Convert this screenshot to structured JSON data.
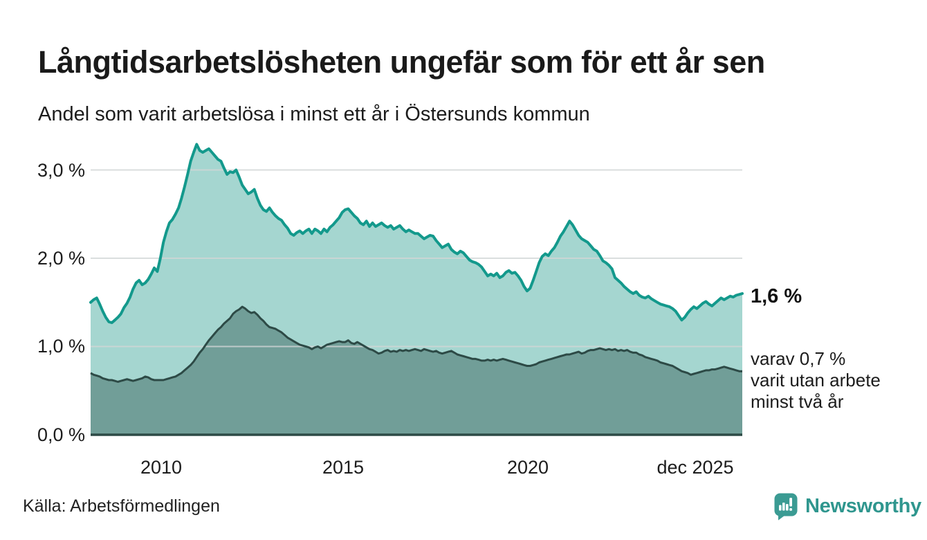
{
  "title": "Långtidsarbetslösheten ungefär som för ett år sen",
  "subtitle": "Andel som varit arbetslösa i minst ett år i Östersunds kommun",
  "source": "Källa: Arbetsförmedlingen",
  "brand": {
    "name": "Newsworthy",
    "icon": "newsworthy-speech-bubble-bars-icon",
    "color": "#2f968e",
    "icon_color": "#3b9b93"
  },
  "annotations": {
    "end_value": "1,6 %",
    "sub_lines": [
      "varav 0,7 %",
      "varit utan arbete",
      "minst två år"
    ]
  },
  "colors": {
    "line_total": "#13998c",
    "fill_total": "#a5d6d0",
    "line_two_years": "#2d4a46",
    "fill_two_years": "#719e98",
    "gridline": "#d2d6d6",
    "text": "#1a1a1a"
  },
  "chart_data": {
    "type": "area",
    "title": "Långtidsarbetslösheten ungefär som för ett år sen",
    "subtitle": "Andel som varit arbetslösa i minst ett år i Östersunds kommun",
    "unit": "%",
    "x_start": "2008-01",
    "x_end": "2025-12",
    "interval": "monthly",
    "ylim": [
      0,
      3.45
    ],
    "grid": "horizontal",
    "legend_position": "right-annotations",
    "x_ticks": [
      {
        "label": "2010",
        "x": 2010.0,
        "align": "center"
      },
      {
        "label": "2015",
        "x": 2015.0,
        "align": "center"
      },
      {
        "label": "2020",
        "x": 2020.0,
        "align": "center"
      },
      {
        "label": "dec 2025",
        "x": 2025.92,
        "align": "end"
      }
    ],
    "y_ticks": [
      {
        "label": "3,0 %",
        "value": 3
      },
      {
        "label": "2,0 %",
        "value": 2
      },
      {
        "label": "1,0 %",
        "value": 1
      },
      {
        "label": "0,0 %",
        "value": 0
      }
    ],
    "series": [
      {
        "name": "Andel arbetslösa minst ett år",
        "end_label": "1,6 %",
        "color": "#13998c",
        "fill": "#a5d6d0",
        "values": [
          1.5,
          1.53,
          1.55,
          1.48,
          1.4,
          1.33,
          1.28,
          1.27,
          1.3,
          1.33,
          1.37,
          1.44,
          1.49,
          1.56,
          1.65,
          1.72,
          1.75,
          1.7,
          1.72,
          1.76,
          1.82,
          1.89,
          1.85,
          2.0,
          2.18,
          2.3,
          2.4,
          2.44,
          2.5,
          2.57,
          2.68,
          2.81,
          2.95,
          3.1,
          3.2,
          3.29,
          3.22,
          3.2,
          3.22,
          3.24,
          3.2,
          3.16,
          3.12,
          3.1,
          3.02,
          2.95,
          2.98,
          2.97,
          3.0,
          2.92,
          2.83,
          2.78,
          2.73,
          2.75,
          2.78,
          2.68,
          2.6,
          2.55,
          2.53,
          2.57,
          2.52,
          2.48,
          2.45,
          2.43,
          2.38,
          2.34,
          2.28,
          2.26,
          2.29,
          2.31,
          2.28,
          2.31,
          2.33,
          2.28,
          2.33,
          2.31,
          2.28,
          2.33,
          2.3,
          2.35,
          2.38,
          2.42,
          2.46,
          2.52,
          2.55,
          2.56,
          2.52,
          2.48,
          2.45,
          2.4,
          2.38,
          2.42,
          2.36,
          2.4,
          2.36,
          2.38,
          2.4,
          2.37,
          2.35,
          2.37,
          2.33,
          2.35,
          2.37,
          2.33,
          2.3,
          2.32,
          2.3,
          2.28,
          2.28,
          2.25,
          2.22,
          2.24,
          2.26,
          2.25,
          2.2,
          2.16,
          2.12,
          2.14,
          2.16,
          2.1,
          2.07,
          2.05,
          2.08,
          2.06,
          2.02,
          1.98,
          1.96,
          1.95,
          1.93,
          1.9,
          1.85,
          1.8,
          1.82,
          1.8,
          1.83,
          1.78,
          1.8,
          1.84,
          1.86,
          1.83,
          1.84,
          1.8,
          1.75,
          1.68,
          1.63,
          1.66,
          1.75,
          1.85,
          1.95,
          2.02,
          2.05,
          2.03,
          2.08,
          2.12,
          2.18,
          2.25,
          2.3,
          2.36,
          2.42,
          2.38,
          2.32,
          2.26,
          2.22,
          2.2,
          2.18,
          2.14,
          2.1,
          2.08,
          2.03,
          1.97,
          1.95,
          1.92,
          1.88,
          1.78,
          1.75,
          1.72,
          1.68,
          1.65,
          1.62,
          1.6,
          1.62,
          1.58,
          1.56,
          1.55,
          1.57,
          1.54,
          1.52,
          1.5,
          1.48,
          1.47,
          1.46,
          1.45,
          1.43,
          1.4,
          1.35,
          1.3,
          1.33,
          1.38,
          1.42,
          1.45,
          1.43,
          1.46,
          1.49,
          1.51,
          1.48,
          1.46,
          1.49,
          1.52,
          1.55,
          1.53,
          1.55,
          1.57,
          1.56,
          1.58,
          1.59,
          1.6
        ]
      },
      {
        "name": "varav utan arbete minst två år",
        "end_label": "0,7 %",
        "color": "#2d4a46",
        "fill": "#719e98",
        "values": [
          0.7,
          0.68,
          0.67,
          0.66,
          0.64,
          0.63,
          0.62,
          0.62,
          0.61,
          0.6,
          0.61,
          0.62,
          0.63,
          0.62,
          0.61,
          0.62,
          0.63,
          0.64,
          0.66,
          0.65,
          0.63,
          0.62,
          0.62,
          0.62,
          0.62,
          0.63,
          0.64,
          0.65,
          0.66,
          0.68,
          0.7,
          0.73,
          0.76,
          0.79,
          0.83,
          0.88,
          0.93,
          0.97,
          1.02,
          1.07,
          1.11,
          1.15,
          1.19,
          1.22,
          1.26,
          1.29,
          1.32,
          1.37,
          1.4,
          1.42,
          1.45,
          1.43,
          1.4,
          1.38,
          1.39,
          1.36,
          1.32,
          1.29,
          1.25,
          1.22,
          1.21,
          1.2,
          1.18,
          1.16,
          1.13,
          1.1,
          1.08,
          1.06,
          1.04,
          1.02,
          1.01,
          1.0,
          0.99,
          0.97,
          0.99,
          1.0,
          0.98,
          1.0,
          1.02,
          1.03,
          1.04,
          1.05,
          1.06,
          1.05,
          1.05,
          1.07,
          1.04,
          1.03,
          1.05,
          1.03,
          1.01,
          0.99,
          0.97,
          0.96,
          0.94,
          0.92,
          0.93,
          0.95,
          0.96,
          0.94,
          0.95,
          0.94,
          0.96,
          0.95,
          0.96,
          0.95,
          0.96,
          0.97,
          0.96,
          0.95,
          0.97,
          0.96,
          0.95,
          0.94,
          0.95,
          0.93,
          0.92,
          0.93,
          0.94,
          0.95,
          0.93,
          0.91,
          0.9,
          0.89,
          0.88,
          0.87,
          0.86,
          0.86,
          0.85,
          0.84,
          0.84,
          0.85,
          0.84,
          0.85,
          0.84,
          0.85,
          0.86,
          0.85,
          0.84,
          0.83,
          0.82,
          0.81,
          0.8,
          0.79,
          0.78,
          0.78,
          0.79,
          0.8,
          0.82,
          0.83,
          0.84,
          0.85,
          0.86,
          0.87,
          0.88,
          0.89,
          0.9,
          0.91,
          0.91,
          0.92,
          0.93,
          0.94,
          0.92,
          0.93,
          0.95,
          0.96,
          0.96,
          0.97,
          0.98,
          0.97,
          0.96,
          0.97,
          0.96,
          0.97,
          0.95,
          0.96,
          0.95,
          0.96,
          0.94,
          0.93,
          0.93,
          0.91,
          0.9,
          0.88,
          0.87,
          0.86,
          0.85,
          0.84,
          0.82,
          0.81,
          0.8,
          0.79,
          0.78,
          0.76,
          0.74,
          0.72,
          0.71,
          0.7,
          0.68,
          0.69,
          0.7,
          0.71,
          0.72,
          0.73,
          0.73,
          0.74,
          0.74,
          0.75,
          0.76,
          0.77,
          0.76,
          0.75,
          0.74,
          0.73,
          0.72,
          0.72
        ]
      }
    ]
  }
}
